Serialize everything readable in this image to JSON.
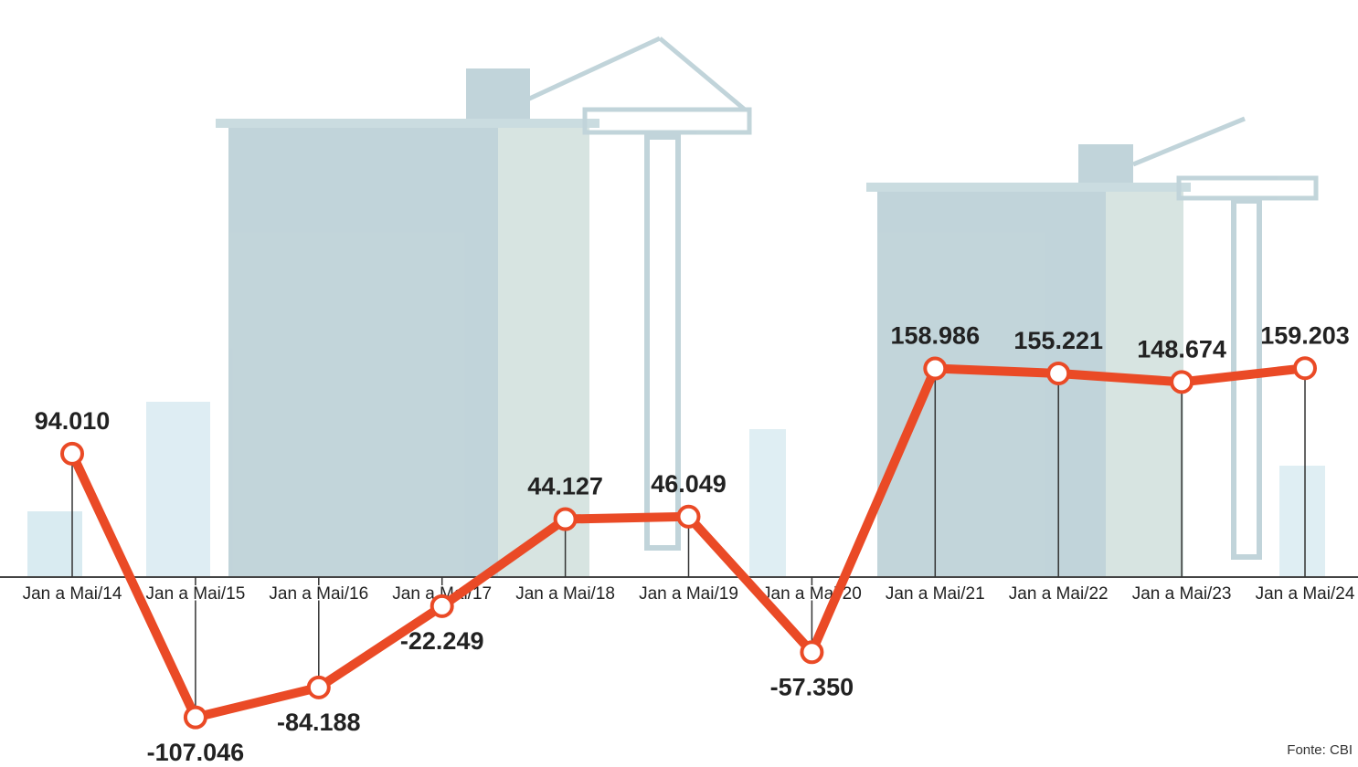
{
  "chart_data": {
    "type": "line",
    "categories": [
      "Jan a Mai/14",
      "Jan a Mai/15",
      "Jan a Mai/16",
      "Jan a Mai/17",
      "Jan a Mai/18",
      "Jan a Mai/19",
      "Jan a Mai/20",
      "Jan a Mai/21",
      "Jan a Mai/22",
      "Jan a Mai/23",
      "Jan a Mai/24"
    ],
    "values": [
      94010,
      -107046,
      -84188,
      -22249,
      44127,
      46049,
      -57350,
      158986,
      155221,
      148674,
      159203
    ],
    "value_labels": [
      "94.010",
      "-107.046",
      "-84.188",
      "-22.249",
      "44.127",
      "46.049",
      "-57.350",
      "158.986",
      "155.221",
      "148.674",
      "159.203"
    ],
    "color": "#ea4a26",
    "ylim": [
      -140000,
      300000
    ],
    "source": "Fonte: CBI"
  }
}
